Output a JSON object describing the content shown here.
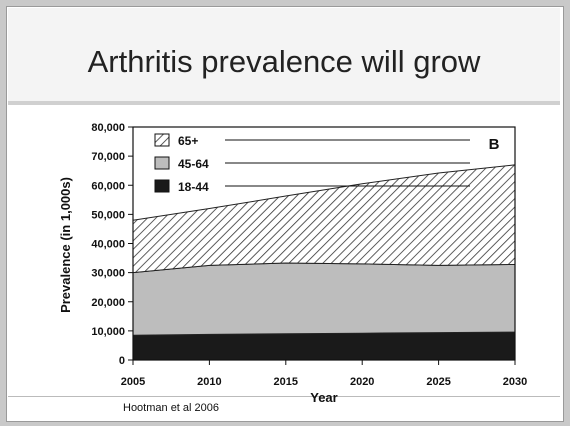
{
  "slide": {
    "title": "Arthritis prevalence will grow",
    "citation": "Hootman et al 2006"
  },
  "chart_data": {
    "type": "area",
    "stacked": true,
    "panel_label": "B",
    "ylabel": "Prevalence (in 1,000s)",
    "xlabel": "Year",
    "x": [
      2005,
      2010,
      2015,
      2020,
      2025,
      2030
    ],
    "ylim": [
      0,
      80000
    ],
    "yticks": [
      0,
      10000,
      20000,
      30000,
      40000,
      50000,
      60000,
      70000,
      80000
    ],
    "ytick_labels": [
      "0",
      "10,000",
      "20,000",
      "30,000",
      "40,000",
      "50,000",
      "60,000",
      "70,000",
      "80,000"
    ],
    "series": [
      {
        "name": "18-44",
        "values": [
          8500,
          8800,
          9000,
          9200,
          9400,
          9600
        ],
        "color": "#1a1a1a"
      },
      {
        "name": "45-64",
        "values": [
          21500,
          23700,
          24300,
          23800,
          23100,
          23200
        ],
        "color": "#bdbdbd"
      },
      {
        "name": "65+",
        "values": [
          18000,
          19500,
          23000,
          27500,
          31700,
          34200
        ],
        "color": "#ffffff",
        "pattern": "diagonal-hatch"
      }
    ],
    "legend": {
      "placement": "top-left"
    },
    "grid": false
  }
}
